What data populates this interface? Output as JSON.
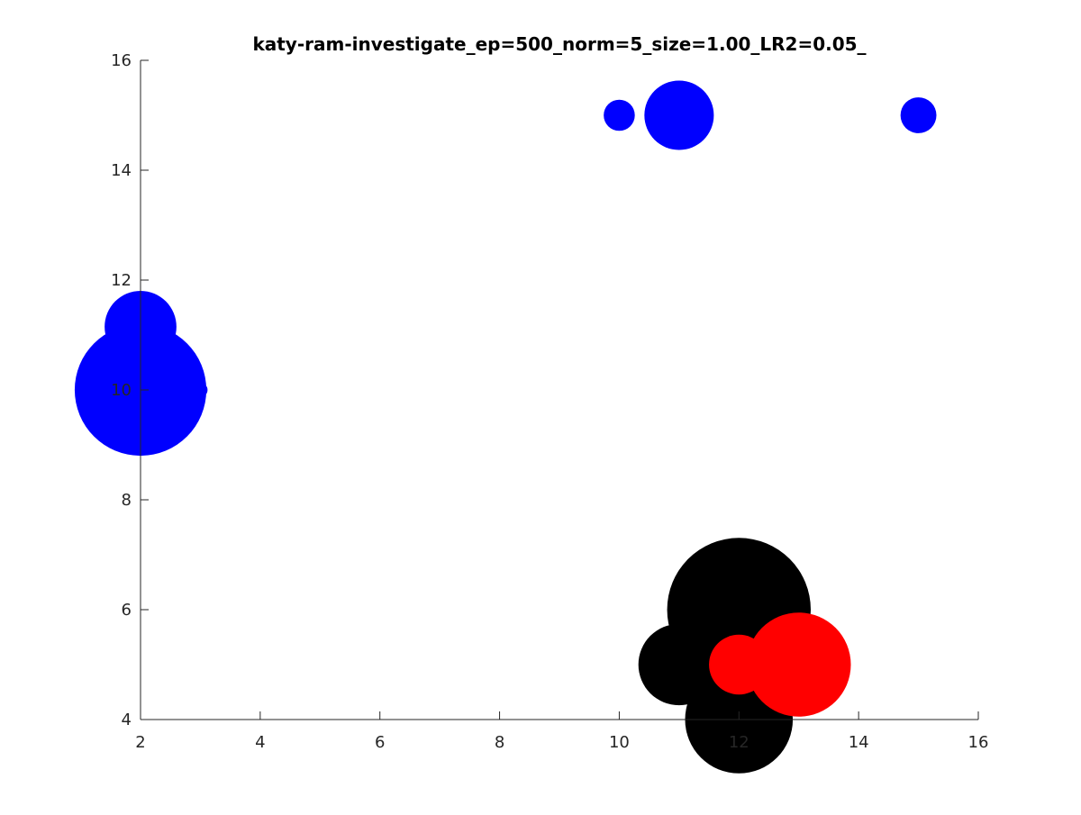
{
  "chart_data": {
    "type": "scatter",
    "title": "katy-ram-investigate_ep=500_norm=5_size=1.00_LR2=0.05_",
    "xlabel": "",
    "ylabel": "",
    "xlim": [
      2,
      16
    ],
    "ylim": [
      4,
      16
    ],
    "x_ticks": [
      2,
      4,
      6,
      8,
      10,
      12,
      14,
      16
    ],
    "y_ticks": [
      4,
      6,
      8,
      10,
      12,
      14,
      16
    ],
    "x_tick_labels": [
      "2",
      "4",
      "6",
      "8",
      "10",
      "12",
      "14",
      "16"
    ],
    "y_tick_labels": [
      "4",
      "6",
      "8",
      "10",
      "12",
      "14",
      "16"
    ],
    "axes_box": "left-bottom only",
    "grid": false,
    "legend": "none",
    "series": [
      {
        "color": "#0000ff",
        "points": [
          {
            "x": 2.0,
            "y": 10.0,
            "r": 1.1
          },
          {
            "x": 2.0,
            "y": 11.15,
            "r": 0.6
          },
          {
            "x": 3.0,
            "y": 10.0,
            "r": 0.12
          },
          {
            "x": 2.0,
            "y": 9.4,
            "r": 0.16
          },
          {
            "x": 10.0,
            "y": 15.0,
            "r": 0.26
          },
          {
            "x": 11.0,
            "y": 15.0,
            "r": 0.58
          },
          {
            "x": 15.0,
            "y": 15.0,
            "r": 0.3
          }
        ]
      },
      {
        "color": "#000000",
        "points": [
          {
            "x": 12.0,
            "y": 6.0,
            "r": 1.2
          },
          {
            "x": 11.0,
            "y": 5.0,
            "r": 0.68
          },
          {
            "x": 12.0,
            "y": 4.0,
            "r": 0.9
          }
        ]
      },
      {
        "color": "#ff0000",
        "points": [
          {
            "x": 12.0,
            "y": 5.0,
            "r": 0.5
          },
          {
            "x": 13.0,
            "y": 5.0,
            "r": 0.87
          }
        ]
      }
    ]
  }
}
